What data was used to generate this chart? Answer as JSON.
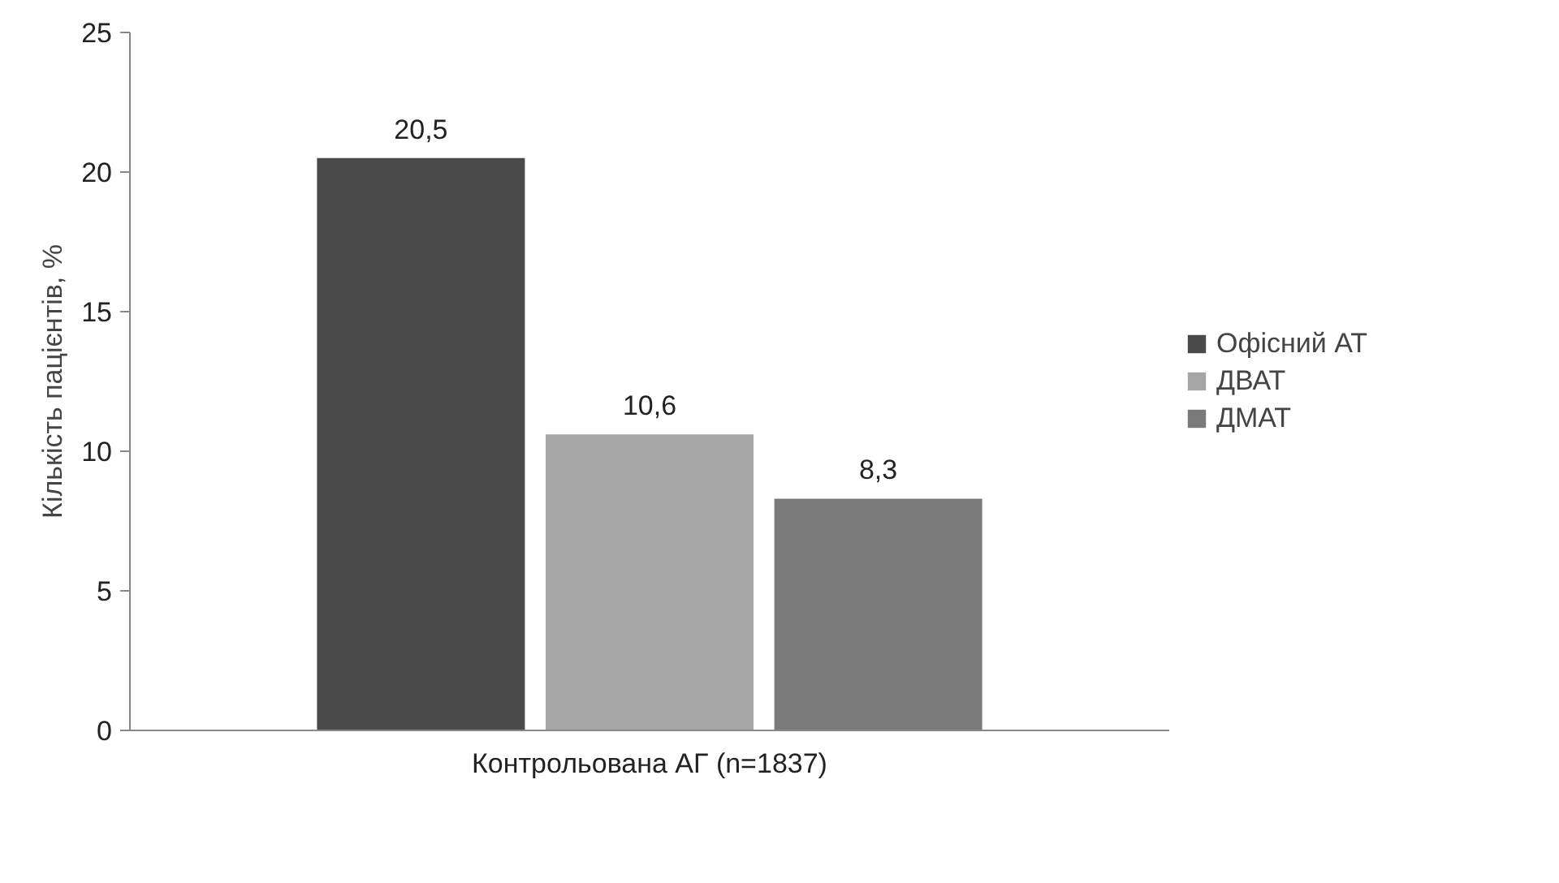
{
  "chart_data": {
    "type": "bar",
    "ylabel": "Кількість пацієнтів, %",
    "categories": [
      "Контрольована АГ (n=1837)"
    ],
    "series": [
      {
        "name": "Офісний АТ",
        "color": "#4a4a4a",
        "values": [
          20.5
        ],
        "value_labels": [
          "20,5"
        ]
      },
      {
        "name": "ДВАТ",
        "color": "#a6a6a6",
        "values": [
          10.6
        ],
        "value_labels": [
          "10,6"
        ]
      },
      {
        "name": "ДМАТ",
        "color": "#7a7a7a",
        "values": [
          8.3
        ],
        "value_labels": [
          "8,3"
        ]
      }
    ],
    "ylim": [
      0,
      25
    ],
    "yticks": [
      0,
      5,
      10,
      15,
      20,
      25
    ],
    "grid": false,
    "legend": "right"
  }
}
